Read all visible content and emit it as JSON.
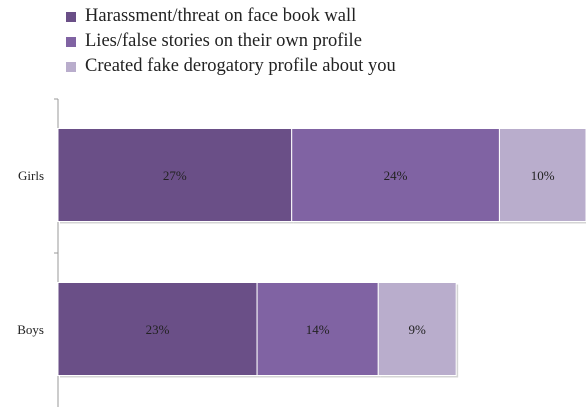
{
  "chart_data": {
    "type": "bar",
    "orientation": "horizontal",
    "stacked": true,
    "categories": [
      "Girls",
      "Boys"
    ],
    "series": [
      {
        "name": "Harassment/threat on face book wall",
        "values": [
          27,
          23
        ],
        "labels": [
          "27%",
          "23%"
        ],
        "color": "#6a4f87"
      },
      {
        "name": "Lies/false stories on their own profile",
        "values": [
          24,
          14
        ],
        "labels": [
          "24%",
          "14%"
        ],
        "color": "#8063a3"
      },
      {
        "name": "Created fake derogatory profile about you",
        "values": [
          10,
          9
        ],
        "labels": [
          "10%",
          "9%"
        ],
        "color": "#b9adcc"
      }
    ],
    "xlim": [
      0,
      61
    ],
    "legend_position": "top-left",
    "grid": false
  }
}
